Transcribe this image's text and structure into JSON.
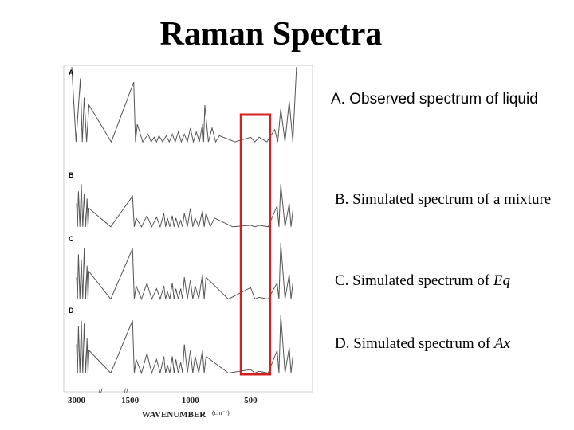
{
  "title": "Raman Spectra",
  "descriptions": {
    "a": "A. Observed spectrum of liquid",
    "b_prefix": "B. Simulated spectrum of a mixture",
    "c_prefix": "C. Simulated spectrum of ",
    "c_italic": "Eq",
    "d_prefix": "D. Simulated spectrum of ",
    "d_italic": "Ax"
  },
  "colors": {
    "spectrum": "#555555",
    "highlight_box": "#d42020",
    "text": "#000000"
  },
  "chart_data": {
    "type": "line",
    "xlabel": "WAVENUMBER",
    "xlabel_unit": "(cm⁻¹)",
    "x_ticks": [
      "3000",
      "1500",
      "1000",
      "500"
    ],
    "axis_break_marks": [
      "//",
      "//"
    ],
    "highlight_region_cm": [
      340,
      580
    ],
    "series": [
      {
        "name": "A",
        "x": [
          3050,
          2960,
          2920,
          2870,
          1470,
          1440,
          1350,
          1300,
          1260,
          1200,
          1150,
          1100,
          1050,
          1000,
          950,
          900,
          880,
          820,
          760,
          500,
          430,
          300,
          250,
          180,
          120
        ],
        "y": [
          1.0,
          0.85,
          0.6,
          0.5,
          0.8,
          0.25,
          0.12,
          0.08,
          0.1,
          0.1,
          0.12,
          0.15,
          0.12,
          0.2,
          0.15,
          0.25,
          0.5,
          0.2,
          0.1,
          0.08,
          0.08,
          0.18,
          0.45,
          0.55,
          1.0
        ]
      },
      {
        "name": "B",
        "x": [
          3000,
          2980,
          2950,
          2920,
          2890,
          2870,
          1480,
          1450,
          1360,
          1280,
          1220,
          1190,
          1150,
          1120,
          1080,
          1050,
          1000,
          960,
          900,
          870,
          800,
          500,
          430,
          280,
          250,
          180,
          150
        ],
        "y": [
          0.5,
          0.75,
          0.9,
          0.7,
          0.6,
          0.4,
          0.65,
          0.2,
          0.25,
          0.22,
          0.3,
          0.2,
          0.25,
          0.2,
          0.15,
          0.3,
          0.4,
          0.2,
          0.35,
          0.3,
          0.2,
          0.05,
          0.05,
          0.45,
          0.9,
          0.5,
          0.35
        ]
      },
      {
        "name": "C",
        "x": [
          3000,
          2980,
          2950,
          2920,
          2890,
          2870,
          1480,
          1450,
          1360,
          1280,
          1220,
          1190,
          1150,
          1120,
          1080,
          1050,
          1000,
          960,
          900,
          870,
          500,
          430,
          280,
          250,
          180,
          150
        ],
        "y": [
          0.4,
          0.8,
          0.7,
          0.9,
          0.6,
          0.5,
          0.9,
          0.25,
          0.3,
          0.2,
          0.25,
          0.15,
          0.3,
          0.2,
          0.2,
          0.4,
          0.35,
          0.25,
          0.45,
          0.4,
          0.22,
          0.05,
          0.3,
          1.0,
          0.45,
          0.3
        ]
      },
      {
        "name": "D",
        "x": [
          3000,
          2980,
          2950,
          2920,
          2890,
          2870,
          1480,
          1450,
          1360,
          1280,
          1220,
          1190,
          1150,
          1120,
          1080,
          1050,
          1000,
          960,
          900,
          870,
          500,
          430,
          280,
          250,
          180,
          150
        ],
        "y": [
          0.5,
          0.8,
          0.9,
          0.85,
          0.6,
          0.4,
          0.9,
          0.25,
          0.35,
          0.25,
          0.3,
          0.15,
          0.3,
          0.25,
          0.2,
          0.5,
          0.4,
          0.3,
          0.4,
          0.3,
          0.08,
          0.05,
          0.4,
          1.0,
          0.45,
          0.3
        ]
      }
    ]
  }
}
